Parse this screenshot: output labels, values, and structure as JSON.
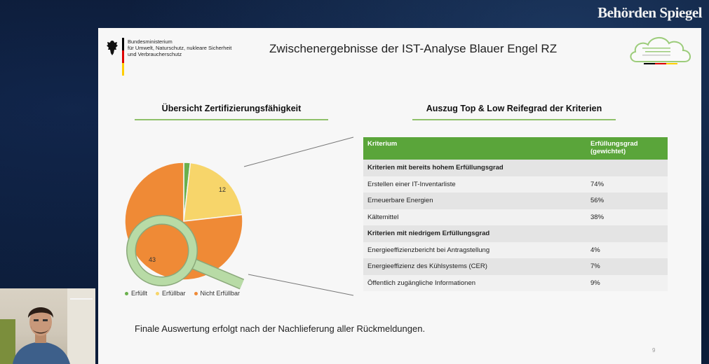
{
  "watermark": {
    "brand": "Behörden Spiegel"
  },
  "slide": {
    "ministry_lines": [
      "Bundesministerium",
      "für Umwelt, Naturschutz, nukleare Sicherheit",
      "und Verbraucherschutz"
    ],
    "title": "Zwischenergebnisse der IST-Analyse Blauer Engel RZ",
    "left_heading": "Übersicht Zertifizierungsfähigkeit",
    "right_heading": "Auszug Top & Low Reifegrad der Kriterien",
    "footer_note": "Finale Auswertung erfolgt nach der Nachlieferung aller Rückmeldungen.",
    "page_number": "9"
  },
  "chart_data": {
    "type": "pie",
    "categories": [
      "Erfüllt",
      "Erfüllbar",
      "Nicht Erfüllbar"
    ],
    "values": [
      1,
      12,
      43
    ],
    "data_labels": [
      "",
      "12",
      "43"
    ],
    "colors": [
      "#6ab04c",
      "#f7d56a",
      "#ef8a36"
    ],
    "legend_position": "bottom"
  },
  "table": {
    "headers": [
      "Kriterium",
      "Erfüllungsgrad (gewichtet)"
    ],
    "rows": [
      {
        "kind": "section",
        "label": "Kriterien mit bereits hohem Erfüllungsgrad",
        "value": ""
      },
      {
        "kind": "item",
        "label": "Erstellen einer IT-Inventarliste",
        "value": "74%"
      },
      {
        "kind": "item",
        "label": "Erneuerbare Energien",
        "value": "56%"
      },
      {
        "kind": "item",
        "label": "Kältemittel",
        "value": "38%"
      },
      {
        "kind": "section",
        "label": "Kriterien mit niedrigem Erfüllungsgrad",
        "value": ""
      },
      {
        "kind": "item",
        "label": "Energieeffizienzbericht bei Antragstellung",
        "value": "4%"
      },
      {
        "kind": "item",
        "label": "Energieeffizienz des Kühlsystems (CER)",
        "value": "7%"
      },
      {
        "kind": "item",
        "label": "Öffentlich zugängliche Informationen",
        "value": "9%"
      }
    ]
  },
  "colors": {
    "accent_green": "#5aa53a",
    "divider_green": "#8fc06a",
    "magnifier_green": "#a9d494"
  }
}
